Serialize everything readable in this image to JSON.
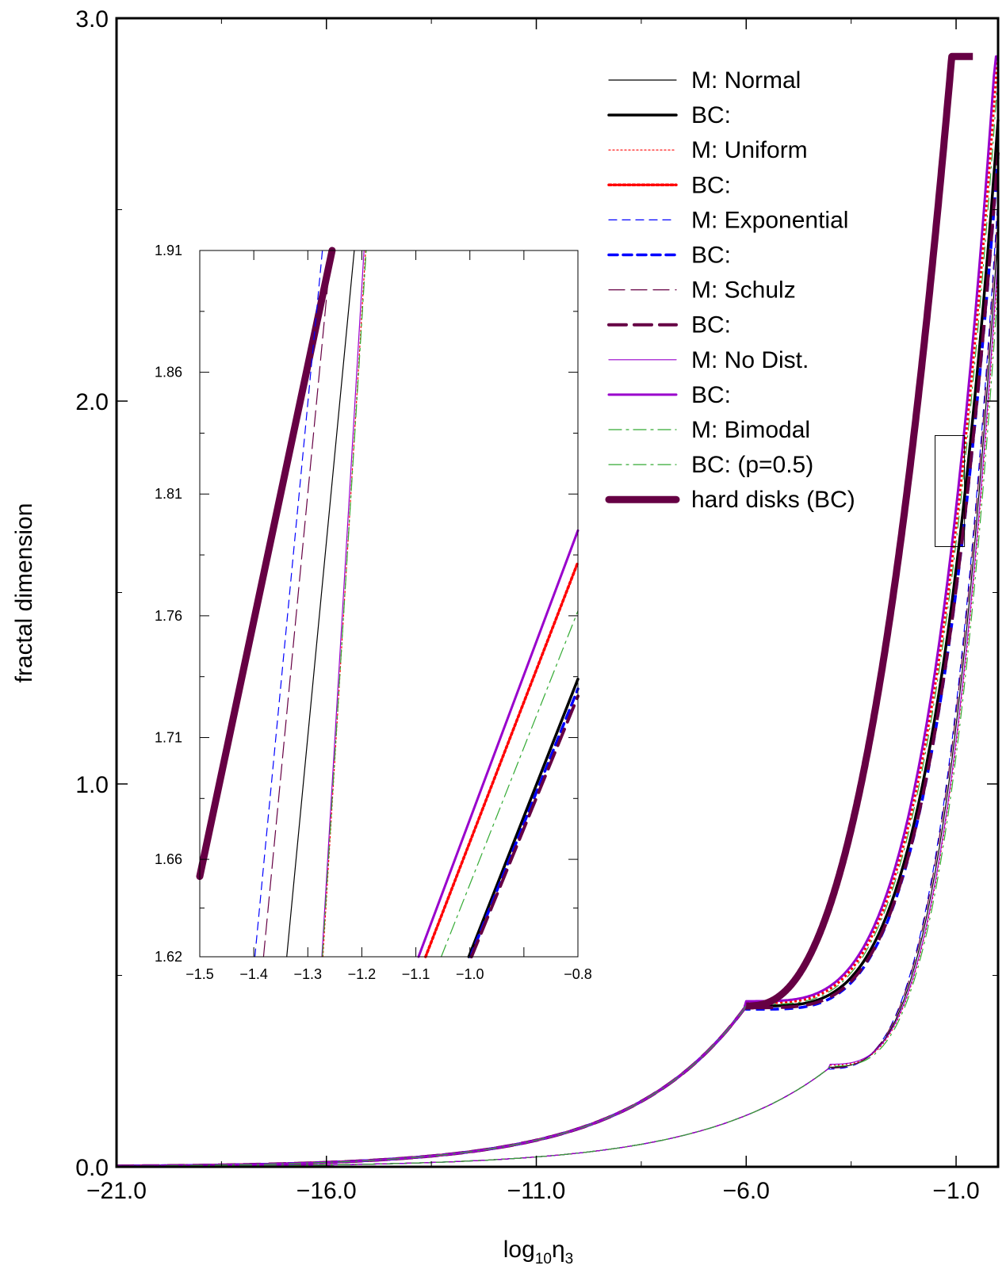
{
  "chart_data": {
    "type": "line",
    "xlabel_main": "log",
    "xlabel_sub1": "10",
    "xlabel_mid": "η",
    "xlabel_sub2": "3",
    "ylabel": "fractal dimension",
    "xlim": [
      -21.0,
      0.0
    ],
    "ylim": [
      0.0,
      3.0
    ],
    "x_ticks": [
      -21.0,
      -16.0,
      -11.0,
      -6.0,
      -1.0
    ],
    "x_tick_labels": [
      "−21.0",
      "−16.0",
      "−11.0",
      "−6.0",
      "−1.0"
    ],
    "y_ticks": [
      0.0,
      1.0,
      2.0,
      3.0
    ],
    "y_tick_labels": [
      "0.0",
      "1.0",
      "2.0",
      "3.0"
    ],
    "grid": false,
    "legend_position": "top-right",
    "series": [
      {
        "name": "M: Normal",
        "color": "#000000",
        "style": "solid-thin",
        "family": "M",
        "shift": -0.2,
        "scale": 1.0
      },
      {
        "name": "BC:",
        "color": "#000000",
        "style": "solid-thick",
        "family": "BC",
        "shift": 0.12,
        "scale": 1.0
      },
      {
        "name": "M: Uniform",
        "color": "#ff0000",
        "style": "dotted-thin",
        "family": "M",
        "shift": -0.12,
        "scale": 1.02
      },
      {
        "name": "BC:",
        "color": "#ff0000",
        "style": "dotted-thick",
        "family": "BC",
        "shift": 0.03,
        "scale": 1.02
      },
      {
        "name": "M: Exponential",
        "color": "#0000ff",
        "style": "dashed-thin",
        "family": "M",
        "shift": -0.28,
        "scale": 0.98
      },
      {
        "name": "BC:",
        "color": "#0000ff",
        "style": "dashed-thick",
        "family": "BC",
        "shift": 0.15,
        "scale": 0.98
      },
      {
        "name": "M: Schulz",
        "color": "#660044",
        "style": "longdash-thin",
        "family": "M",
        "shift": -0.25,
        "scale": 0.99
      },
      {
        "name": "BC:",
        "color": "#660044",
        "style": "longdash-thick",
        "family": "BC",
        "shift": 0.16,
        "scale": 0.99
      },
      {
        "name": "M: No Dist.",
        "color": "#9900cc",
        "style": "solid-thin",
        "family": "M",
        "shift": -0.12,
        "scale": 1.03
      },
      {
        "name": "BC:",
        "color": "#9900cc",
        "style": "solid-medium",
        "family": "BC",
        "shift": 0.0,
        "scale": 1.03
      },
      {
        "name": "M: Bimodal",
        "color": "#33aa33",
        "style": "dashdot-thin",
        "family": "M",
        "shift": -0.1,
        "scale": 1.01
      },
      {
        "name": "BC: (p=0.5)",
        "color": "#33aa33",
        "style": "dashdot-thin",
        "family": "BC",
        "shift": 0.06,
        "scale": 1.01
      },
      {
        "name": "hard disks (BC)",
        "color": "#660044",
        "style": "solid-heavy",
        "family": "HD",
        "shift": -0.25,
        "scale": 1.0
      }
    ],
    "highlight_box": {
      "x": [
        -1.5,
        -0.8
      ],
      "y": [
        1.62,
        1.91
      ]
    },
    "inset": {
      "xlim": [
        -1.5,
        -0.8
      ],
      "ylim": [
        1.62,
        1.91
      ],
      "x_ticks": [
        -1.5,
        -1.4,
        -1.3,
        -1.2,
        -1.1,
        -1.0,
        -0.9,
        -0.8
      ],
      "x_tick_labels": [
        "−1.5",
        "−1.4",
        "−1.3",
        "−1.2",
        "−1.1",
        "−1.0",
        "",
        "−0.8"
      ],
      "y_ticks": [
        1.62,
        1.66,
        1.71,
        1.76,
        1.81,
        1.86,
        1.91
      ],
      "y_tick_labels": [
        "1.62",
        "1.66",
        "1.71",
        "1.76",
        "1.81",
        "1.86",
        "1.91"
      ],
      "lines": [
        {
          "series": 12,
          "x": [
            -1.5,
            -1.255
          ],
          "y": [
            1.653,
            1.91
          ]
        },
        {
          "series": 4,
          "x": [
            -1.398,
            -1.273
          ],
          "y": [
            1.62,
            1.91
          ]
        },
        {
          "series": 6,
          "x": [
            -1.382,
            -1.257
          ],
          "y": [
            1.62,
            1.91
          ]
        },
        {
          "series": 0,
          "x": [
            -1.339,
            -1.214
          ],
          "y": [
            1.62,
            1.91
          ]
        },
        {
          "series": 8,
          "x": [
            -1.274,
            -1.196
          ],
          "y": [
            1.62,
            1.91
          ]
        },
        {
          "series": 2,
          "x": [
            -1.272,
            -1.193
          ],
          "y": [
            1.62,
            1.91
          ]
        },
        {
          "series": 10,
          "x": [
            -1.273,
            -1.192
          ],
          "y": [
            1.62,
            1.91
          ]
        },
        {
          "series": 9,
          "x": [
            -1.095,
            -0.8
          ],
          "y": [
            1.62,
            1.795
          ]
        },
        {
          "series": 3,
          "x": [
            -1.082,
            -0.8
          ],
          "y": [
            1.62,
            1.782
          ]
        },
        {
          "series": 11,
          "x": [
            -1.053,
            -0.8
          ],
          "y": [
            1.62,
            1.762
          ]
        },
        {
          "series": 1,
          "x": [
            -1.002,
            -0.8
          ],
          "y": [
            1.62,
            1.734
          ]
        },
        {
          "series": 5,
          "x": [
            -0.999,
            -0.8
          ],
          "y": [
            1.62,
            1.73
          ]
        },
        {
          "series": 7,
          "x": [
            -0.997,
            -0.8
          ],
          "y": [
            1.62,
            1.727
          ]
        }
      ]
    }
  }
}
